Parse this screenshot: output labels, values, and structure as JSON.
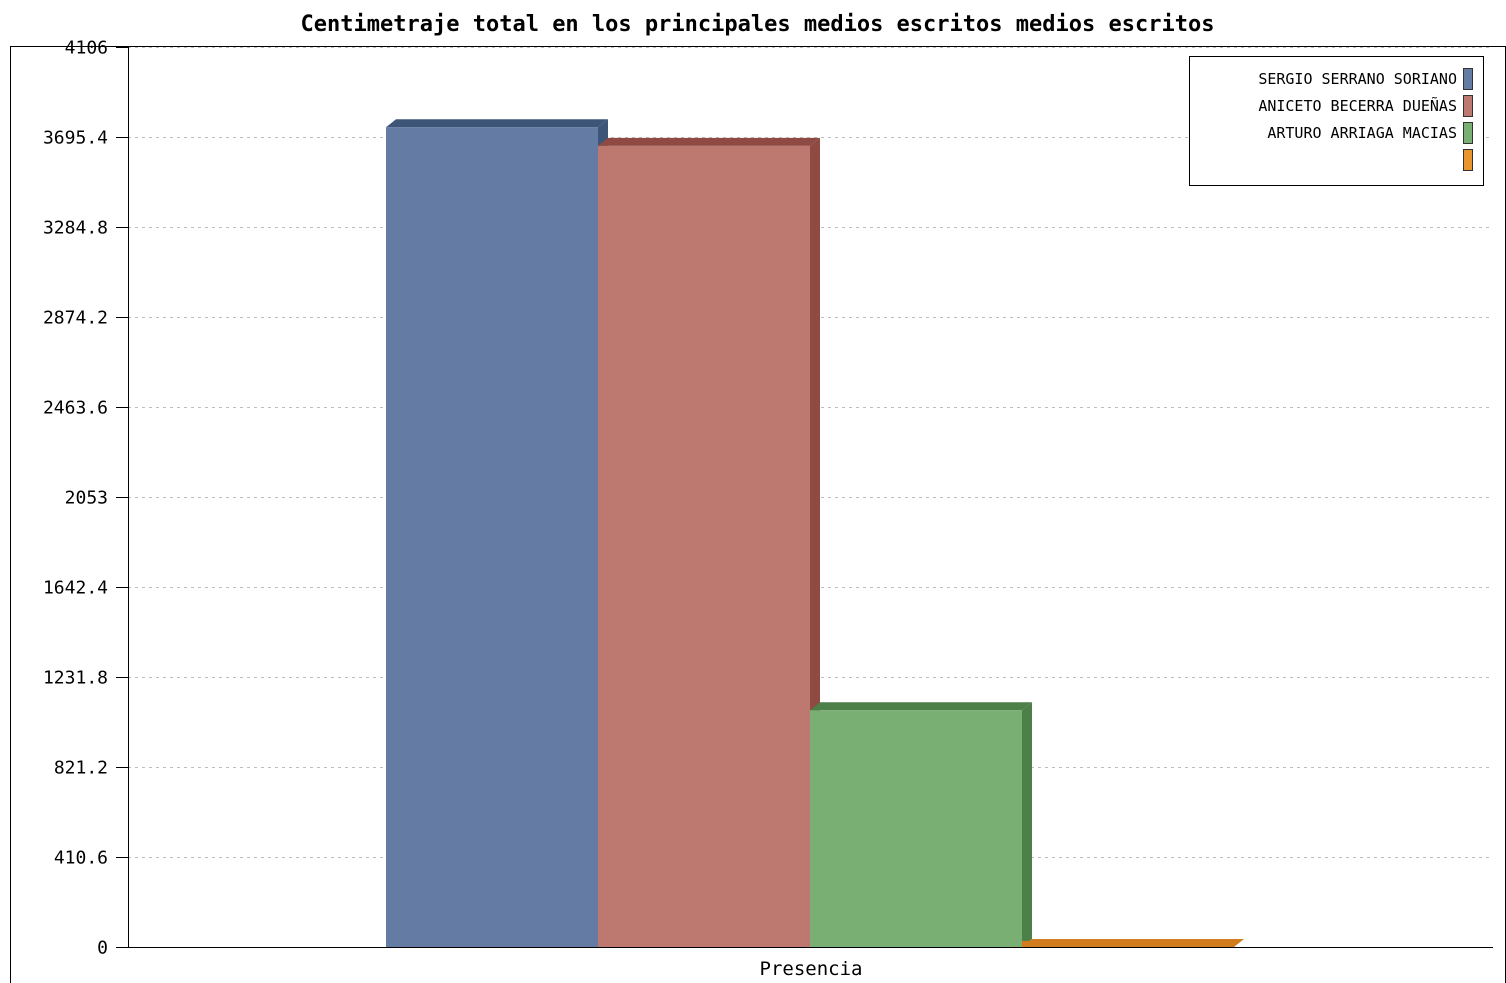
{
  "chart_data": {
    "type": "bar",
    "title": "Centimetraje total en los principales medios escritos medios escritos",
    "categories": [
      "Presencia"
    ],
    "series": [
      {
        "name": "SERGIO SERRANO SORIANO",
        "values": [
          3740
        ],
        "color": "#647ca3",
        "side_color": "#3d5677"
      },
      {
        "name": "ANICETO BECERRA DUEÑAS",
        "values": [
          3655
        ],
        "color": "#bd7870",
        "side_color": "#8e4a43"
      },
      {
        "name": "ARTURO ARRIAGA MACIAS",
        "values": [
          1080
        ],
        "color": "#7aaf74",
        "side_color": "#4d7f48"
      },
      {
        "name": "",
        "values": [
          0
        ],
        "color": "#e8952e",
        "side_color": "#d07b1c"
      }
    ],
    "ylim": [
      0,
      4106
    ],
    "yticks": [
      "0",
      "410.6",
      "821.2",
      "1231.8",
      "1642.4",
      "2053",
      "2463.6",
      "2874.2",
      "3284.8",
      "3695.4",
      "4106"
    ],
    "grid": true,
    "legend_position": "top-right",
    "xlabel": "",
    "ylabel": ""
  }
}
